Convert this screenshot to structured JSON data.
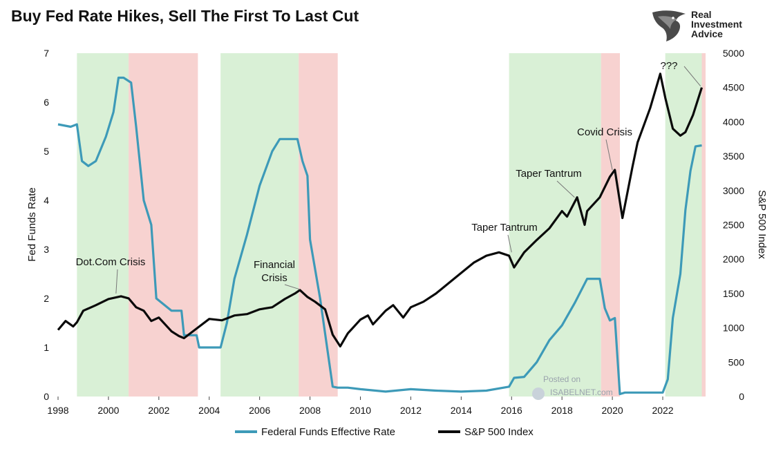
{
  "title": "Buy Fed Rate Hikes, Sell The First To Last Cut",
  "brand": {
    "line1": "Real",
    "line2": "Investment",
    "line3": "Advice"
  },
  "watermark": {
    "line1": "Posted on",
    "line2": "ISABELNET.com"
  },
  "chart_data": {
    "type": "line",
    "title": "Buy Fed Rate Hikes, Sell The First To Last Cut",
    "xlabel": "",
    "ylabel": "Fed Funds Rate",
    "y2label": "S&P 500 Index",
    "xlim": [
      1998,
      2023.7
    ],
    "ylim": [
      0,
      7
    ],
    "y2lim": [
      0,
      5000
    ],
    "x_ticks": [
      1998,
      2000,
      2002,
      2004,
      2006,
      2008,
      2010,
      2012,
      2014,
      2016,
      2018,
      2020,
      2022
    ],
    "y_ticks": [
      0,
      1,
      2,
      3,
      4,
      5,
      6,
      7
    ],
    "y2_ticks": [
      0,
      500,
      1000,
      1500,
      2000,
      2500,
      3000,
      3500,
      4000,
      4500,
      5000
    ],
    "legend_position": "bottom-center",
    "hike_periods": [
      [
        1998.75,
        2000.8
      ],
      [
        2004.45,
        2007.55
      ],
      [
        2015.9,
        2019.55
      ],
      [
        2022.1,
        2023.55
      ]
    ],
    "cut_periods": [
      [
        2000.8,
        2003.55
      ],
      [
        2007.55,
        2009.1
      ],
      [
        2019.55,
        2020.3
      ],
      [
        2023.55,
        2023.7
      ]
    ],
    "colors": {
      "fed": "#3d9ab8",
      "sp500": "#0a0a0a",
      "hike": "#d9f0d6",
      "cut": "#f7d2d0"
    },
    "series": [
      {
        "name": "Federal Funds Effective Rate",
        "axis": "left",
        "x": [
          1998.0,
          1998.5,
          1998.75,
          1998.95,
          1999.2,
          1999.5,
          1999.9,
          2000.2,
          2000.4,
          2000.6,
          2000.9,
          2001.1,
          2001.4,
          2001.7,
          2001.9,
          2002.5,
          2002.9,
          2003.0,
          2003.5,
          2003.6,
          2004.0,
          2004.45,
          2004.7,
          2005.0,
          2005.5,
          2006.0,
          2006.5,
          2006.8,
          2007.0,
          2007.5,
          2007.7,
          2007.9,
          2008.0,
          2008.4,
          2008.9,
          2009.1,
          2009.5,
          2010.0,
          2011.0,
          2012.0,
          2013.0,
          2014.0,
          2015.0,
          2015.9,
          2016.1,
          2016.5,
          2017.0,
          2017.5,
          2018.0,
          2018.5,
          2018.9,
          2019.0,
          2019.5,
          2019.7,
          2019.9,
          2020.1,
          2020.3,
          2020.5,
          2021.0,
          2021.5,
          2022.0,
          2022.2,
          2022.4,
          2022.7,
          2022.9,
          2023.1,
          2023.3,
          2023.55
        ],
        "values": [
          5.55,
          5.5,
          5.55,
          4.8,
          4.7,
          4.8,
          5.3,
          5.8,
          6.5,
          6.5,
          6.4,
          5.5,
          4.0,
          3.5,
          2.0,
          1.75,
          1.75,
          1.25,
          1.25,
          1.0,
          1.0,
          1.0,
          1.5,
          2.4,
          3.3,
          4.3,
          5.0,
          5.25,
          5.25,
          5.25,
          4.8,
          4.5,
          3.2,
          2.0,
          0.2,
          0.18,
          0.18,
          0.15,
          0.1,
          0.15,
          0.12,
          0.1,
          0.12,
          0.2,
          0.38,
          0.4,
          0.7,
          1.15,
          1.45,
          1.9,
          2.3,
          2.4,
          2.4,
          1.8,
          1.55,
          1.6,
          0.05,
          0.08,
          0.08,
          0.08,
          0.08,
          0.35,
          1.6,
          2.5,
          3.8,
          4.6,
          5.1,
          5.12
        ]
      },
      {
        "name": "S&P 500 Index",
        "axis": "right",
        "x": [
          1998.0,
          1998.3,
          1998.6,
          1998.75,
          1999.0,
          1999.5,
          2000.0,
          2000.5,
          2000.8,
          2001.1,
          2001.4,
          2001.7,
          2002.0,
          2002.5,
          2002.8,
          2003.0,
          2003.5,
          2004.0,
          2004.5,
          2005.0,
          2005.5,
          2006.0,
          2006.5,
          2007.0,
          2007.4,
          2007.6,
          2007.9,
          2008.2,
          2008.6,
          2008.9,
          2009.2,
          2009.5,
          2010.0,
          2010.3,
          2010.5,
          2011.0,
          2011.3,
          2011.7,
          2012.0,
          2012.5,
          2013.0,
          2013.5,
          2014.0,
          2014.5,
          2015.0,
          2015.5,
          2015.9,
          2016.1,
          2016.5,
          2017.0,
          2017.5,
          2018.0,
          2018.2,
          2018.6,
          2018.9,
          2019.0,
          2019.5,
          2019.9,
          2020.1,
          2020.4,
          2020.8,
          2021.0,
          2021.5,
          2021.9,
          2022.1,
          2022.4,
          2022.7,
          2022.9,
          2023.2,
          2023.55
        ],
        "values": [
          970,
          1100,
          1020,
          1080,
          1250,
          1330,
          1420,
          1460,
          1430,
          1300,
          1250,
          1100,
          1150,
          950,
          880,
          850,
          990,
          1130,
          1110,
          1180,
          1200,
          1270,
          1300,
          1420,
          1500,
          1550,
          1450,
          1380,
          1270,
          900,
          730,
          920,
          1120,
          1180,
          1050,
          1250,
          1330,
          1150,
          1300,
          1380,
          1500,
          1650,
          1800,
          1950,
          2050,
          2100,
          2050,
          1880,
          2100,
          2280,
          2450,
          2700,
          2620,
          2900,
          2500,
          2700,
          2900,
          3200,
          3300,
          2600,
          3350,
          3700,
          4200,
          4700,
          4350,
          3900,
          3800,
          3850,
          4100,
          4500
        ]
      }
    ],
    "annotations": [
      {
        "text": "Dot.Com Crisis",
        "x": 2000.3,
        "y": 1500,
        "axis": "right"
      },
      {
        "text": "Financial Crisis",
        "x": 2007.6,
        "y": 1560,
        "axis": "right"
      },
      {
        "text": "Taper Tantrum",
        "x": 2016.0,
        "y": 2100,
        "axis": "right"
      },
      {
        "text": "Taper Tantrum",
        "x": 2018.5,
        "y": 2900,
        "axis": "right"
      },
      {
        "text": "Covid Crisis",
        "x": 2020.0,
        "y": 3300,
        "axis": "right"
      },
      {
        "text": "???",
        "x": 2023.5,
        "y": 4520,
        "axis": "right"
      }
    ]
  }
}
